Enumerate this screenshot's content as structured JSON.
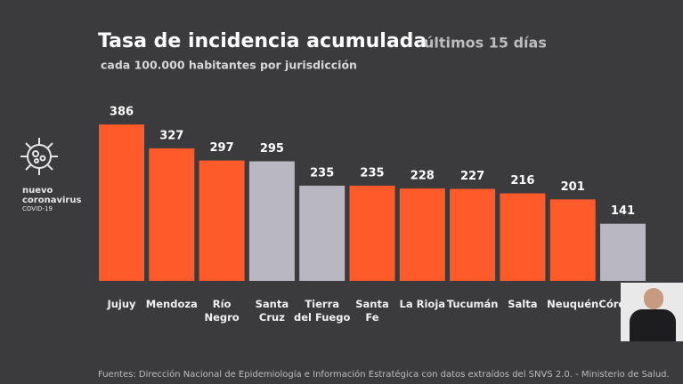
{
  "chart_data": {
    "type": "bar",
    "title": "Tasa de incidencia acumulada",
    "title_suffix": "últimos 15 días",
    "subtitle": "cada 100.000 habitantes por jurisdicción",
    "categories": [
      "Jujuy",
      "Mendoza",
      "Río\nNegro",
      "Santa\nCruz",
      "Tierra\ndel Fuego",
      "Santa\nFe",
      "La Rioja",
      "Tucumán",
      "Salta",
      "Neuquén",
      "Córdoba"
    ],
    "values": [
      386,
      327,
      297,
      295,
      235,
      235,
      228,
      227,
      216,
      201,
      141
    ],
    "colors": [
      "#ff5a2a",
      "#ff5a2a",
      "#ff5a2a",
      "#b9b8c2",
      "#b9b8c2",
      "#ff5a2a",
      "#ff5a2a",
      "#ff5a2a",
      "#ff5a2a",
      "#ff5a2a",
      "#b9b8c2"
    ],
    "source": "Fuentes: Dirección Nacional de Epidemiología e Información Estratégica con datos extraídos del SNVS 2.0. - Ministerio de Salud."
  },
  "logo": [
    "nuevo",
    "coronavirus",
    "COVID-19"
  ]
}
